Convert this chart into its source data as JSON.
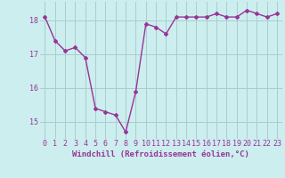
{
  "x": [
    0,
    1,
    2,
    3,
    4,
    5,
    6,
    7,
    8,
    9,
    10,
    11,
    12,
    13,
    14,
    15,
    16,
    17,
    18,
    19,
    20,
    21,
    22,
    23
  ],
  "y": [
    18.1,
    17.4,
    17.1,
    17.2,
    16.9,
    15.4,
    15.3,
    15.2,
    14.7,
    15.9,
    17.9,
    17.8,
    17.6,
    18.1,
    18.1,
    18.1,
    18.1,
    18.2,
    18.1,
    18.1,
    18.3,
    18.2,
    18.1,
    18.2
  ],
  "line_color": "#993399",
  "marker": "D",
  "marker_size": 2.0,
  "linewidth": 1.0,
  "bg_color": "#cceeee",
  "grid_color": "#aacccc",
  "xlabel": "Windchill (Refroidissement éolien,°C)",
  "xlabel_fontsize": 6.5,
  "tick_fontsize": 6.0,
  "ylim": [
    14.5,
    18.55
  ],
  "xlim": [
    -0.5,
    23.5
  ],
  "yticks": [
    15,
    16,
    17,
    18
  ],
  "xticks": [
    0,
    1,
    2,
    3,
    4,
    5,
    6,
    7,
    8,
    9,
    10,
    11,
    12,
    13,
    14,
    15,
    16,
    17,
    18,
    19,
    20,
    21,
    22,
    23
  ]
}
